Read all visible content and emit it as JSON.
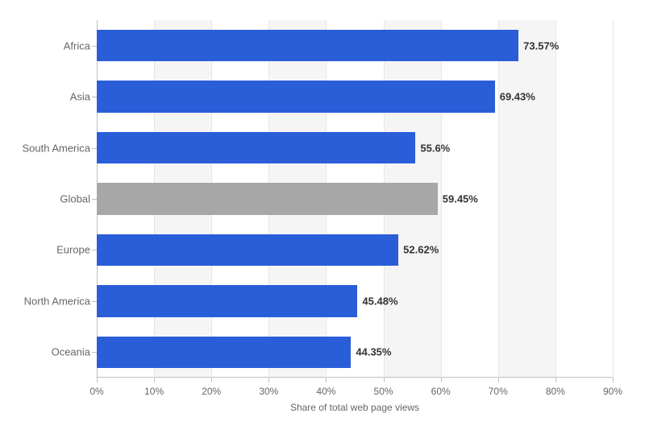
{
  "chart": {
    "type": "bar-horizontal",
    "xlabel": "Share of total web page views",
    "x_min": 0,
    "x_max": 90,
    "x_tick_step": 10,
    "x_tick_suffix": "%",
    "value_suffix": "%",
    "categories": [
      "Africa",
      "Asia",
      "South America",
      "Global",
      "Europe",
      "North America",
      "Oceania"
    ],
    "values": [
      73.57,
      69.43,
      55.6,
      59.45,
      52.62,
      45.48,
      44.35
    ],
    "bar_colors": [
      "#2a5ed9",
      "#2a5ed9",
      "#2a5ed9",
      "#a7a7a7",
      "#2a5ed9",
      "#2a5ed9",
      "#2a5ed9"
    ],
    "bar_fill_ratio": 0.62,
    "value_label_fontsize": 13,
    "value_label_fontweight": 700,
    "value_label_color": "#333333",
    "category_label_fontsize": 13,
    "category_label_color": "#666666",
    "tick_label_fontsize": 12,
    "tick_label_color": "#666666",
    "background_color": "#ffffff",
    "alt_band_color": "#f5f5f5",
    "grid_color": "#e6e6e6",
    "axis_color": "#c0c0c0"
  }
}
